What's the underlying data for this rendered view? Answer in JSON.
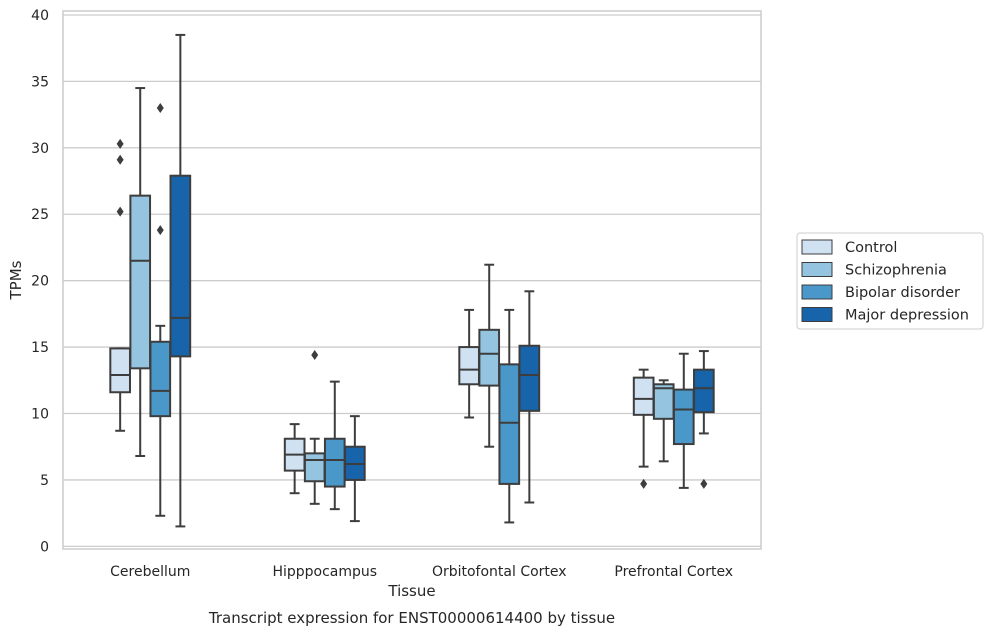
{
  "caption": "Transcript expression for ENST00000614400 by tissue",
  "chart_data": {
    "type": "box",
    "xlabel": "Tissue",
    "ylabel": "TPMs",
    "ylim": [
      -0.2,
      40.3
    ],
    "yticks": [
      0,
      5,
      10,
      15,
      20,
      25,
      30,
      35,
      40
    ],
    "grid": "horizontal",
    "legend_position": "right",
    "categories": [
      "Cerebellum",
      "Hipppocampus",
      "Orbitofontal Cortex",
      "Prefrontal Cortex"
    ],
    "series": [
      {
        "name": "Control",
        "color": "#d0e1f2",
        "boxes": [
          {
            "whislo": 8.7,
            "q1": 11.6,
            "med": 12.9,
            "q3": 14.9,
            "whishi": 14.9,
            "fliers": [
              25.2,
              29.1,
              30.3
            ]
          },
          {
            "whislo": 4.0,
            "q1": 5.7,
            "med": 6.9,
            "q3": 8.1,
            "whishi": 9.2,
            "fliers": []
          },
          {
            "whislo": 9.7,
            "q1": 12.2,
            "med": 13.3,
            "q3": 15.0,
            "whishi": 17.8,
            "fliers": []
          },
          {
            "whislo": 6.0,
            "q1": 9.9,
            "med": 11.1,
            "q3": 12.7,
            "whishi": 13.3,
            "fliers": [
              4.7
            ]
          }
        ]
      },
      {
        "name": "Schizophrenia",
        "color": "#94c4df",
        "boxes": [
          {
            "whislo": 6.8,
            "q1": 13.4,
            "med": 21.5,
            "q3": 26.4,
            "whishi": 34.5,
            "fliers": []
          },
          {
            "whislo": 3.2,
            "q1": 4.9,
            "med": 6.5,
            "q3": 7.0,
            "whishi": 8.1,
            "fliers": [
              14.4
            ]
          },
          {
            "whislo": 7.5,
            "q1": 12.1,
            "med": 14.5,
            "q3": 16.3,
            "whishi": 21.2,
            "fliers": []
          },
          {
            "whislo": 6.4,
            "q1": 9.6,
            "med": 11.9,
            "q3": 12.2,
            "whishi": 12.5,
            "fliers": []
          }
        ]
      },
      {
        "name": "Bipolar disorder",
        "color": "#4a98c9",
        "boxes": [
          {
            "whislo": 2.3,
            "q1": 9.8,
            "med": 11.7,
            "q3": 15.4,
            "whishi": 16.6,
            "fliers": [
              23.8,
              33.0
            ]
          },
          {
            "whislo": 2.8,
            "q1": 4.5,
            "med": 6.5,
            "q3": 8.1,
            "whishi": 12.4,
            "fliers": []
          },
          {
            "whislo": 1.8,
            "q1": 4.7,
            "med": 9.3,
            "q3": 13.7,
            "whishi": 17.8,
            "fliers": []
          },
          {
            "whislo": 4.4,
            "q1": 7.7,
            "med": 10.3,
            "q3": 11.8,
            "whishi": 14.5,
            "fliers": []
          }
        ]
      },
      {
        "name": "Major depression",
        "color": "#1764ab",
        "boxes": [
          {
            "whislo": 1.5,
            "q1": 14.3,
            "med": 17.2,
            "q3": 27.9,
            "whishi": 38.5,
            "fliers": []
          },
          {
            "whislo": 1.9,
            "q1": 5.0,
            "med": 6.2,
            "q3": 7.5,
            "whishi": 9.8,
            "fliers": []
          },
          {
            "whislo": 3.3,
            "q1": 10.2,
            "med": 12.9,
            "q3": 15.1,
            "whishi": 19.2,
            "fliers": []
          },
          {
            "whislo": 8.5,
            "q1": 10.1,
            "med": 11.9,
            "q3": 13.3,
            "whishi": 14.7,
            "fliers": [
              4.7
            ]
          }
        ]
      }
    ]
  }
}
